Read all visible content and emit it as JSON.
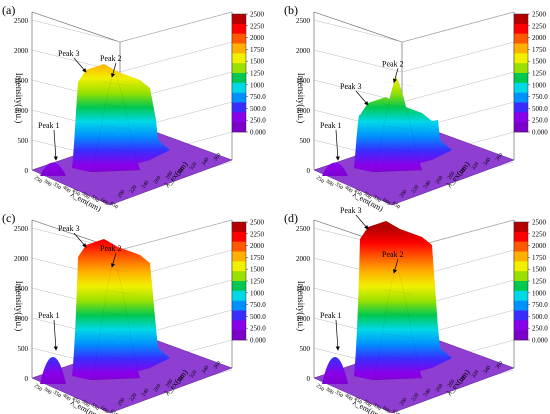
{
  "colors": {
    "colormap": [
      "#7a00c8",
      "#8a00e8",
      "#3a2cff",
      "#0090ff",
      "#00d8e8",
      "#00c850",
      "#9ae000",
      "#f0f000",
      "#ffb000",
      "#ff5a00",
      "#ff0000",
      "#b40000"
    ],
    "axis": "#555555",
    "floor": "#8e3fd2"
  },
  "chart_data": [
    {
      "type": "surface3d",
      "panel_label": "(a)",
      "zlabel": "Intensity(a.u.)",
      "xlabel": "λ_em(nm)",
      "ylabel": "λ_ex(nm)",
      "ztick_labels": [
        "0",
        "500",
        "1000",
        "1500",
        "2000",
        "2500"
      ],
      "zlim": [
        0,
        2500
      ],
      "colorbar": {
        "range": [
          0,
          2500
        ],
        "tick_labels": [
          "2500",
          "2250",
          "2000",
          "1750",
          "1500",
          "1250",
          "1000",
          "750.0",
          "500.0",
          "250.0",
          "0.000"
        ]
      },
      "annotations": [
        {
          "text": "Peak 1",
          "intensity": 200
        },
        {
          "text": "Peak 3",
          "intensity": 1600
        },
        {
          "text": "Peak 2",
          "intensity": 1500
        }
      ],
      "surface": {
        "plateau": 1600,
        "peak2": 1650
      }
    },
    {
      "type": "surface3d",
      "panel_label": "(b)",
      "zlabel": "Intensity(a.u.)",
      "xlabel": "λ_em(nm)",
      "ylabel": "λ_ex(nm)",
      "ztick_labels": [
        "0",
        "500",
        "1000",
        "1500",
        "2000",
        "2500"
      ],
      "zlim": [
        0,
        2500
      ],
      "colorbar": {
        "range": [
          0,
          2500
        ],
        "tick_labels": [
          "2500",
          "2250",
          "2000",
          "1750",
          "1500",
          "1250",
          "1000",
          "750.0",
          "500.0",
          "250.0",
          "0.000"
        ]
      },
      "annotations": [
        {
          "text": "Peak 1",
          "intensity": 200
        },
        {
          "text": "Peak 3",
          "intensity": 1100
        },
        {
          "text": "Peak 2",
          "intensity": 1500
        }
      ],
      "surface": {
        "plateau": 1050,
        "peak2": 1560
      }
    },
    {
      "type": "surface3d",
      "panel_label": "(c)",
      "zlabel": "Intensity(a.u.)",
      "xlabel": "λ_em(nm)",
      "ylabel": "λ_ex(nm)",
      "ztick_labels": [
        "0",
        "500",
        "1000",
        "1500",
        "2000",
        "2500"
      ],
      "zlim": [
        0,
        2500
      ],
      "colorbar": {
        "range": [
          0,
          2500
        ],
        "tick_labels": [
          "2500",
          "2250",
          "2000",
          "1750",
          "1500",
          "1250",
          "1000",
          "750.0",
          "500.0",
          "250.0",
          "0.000"
        ]
      },
      "annotations": [
        {
          "text": "Peak 1",
          "intensity": 500
        },
        {
          "text": "Peak 3",
          "intensity": 1900
        },
        {
          "text": "Peak 2",
          "intensity": 1900
        }
      ],
      "surface": {
        "plateau": 2150,
        "peak2": 1950
      }
    },
    {
      "type": "surface3d",
      "panel_label": "(d)",
      "zlabel": "Intensity(a.u.)",
      "xlabel": "λ_em(nm)",
      "ylabel": "λ_ex(nm)",
      "ztick_labels": [
        "0",
        "500",
        "1000",
        "1500",
        "2000",
        "2500"
      ],
      "zlim": [
        0,
        2500
      ],
      "colorbar": {
        "range": [
          0,
          2500
        ],
        "tick_labels": [
          "2500",
          "2250",
          "2000",
          "1750",
          "1500",
          "1250",
          "1000",
          "750.0",
          "500.0",
          "250.0",
          "0.000"
        ]
      },
      "annotations": [
        {
          "text": "Peak 1",
          "intensity": 500
        },
        {
          "text": "Peak 3",
          "intensity": 2000
        },
        {
          "text": "Peak 2",
          "intensity": 1800
        }
      ],
      "surface": {
        "plateau": 2450,
        "peak2": 1850
      }
    }
  ]
}
